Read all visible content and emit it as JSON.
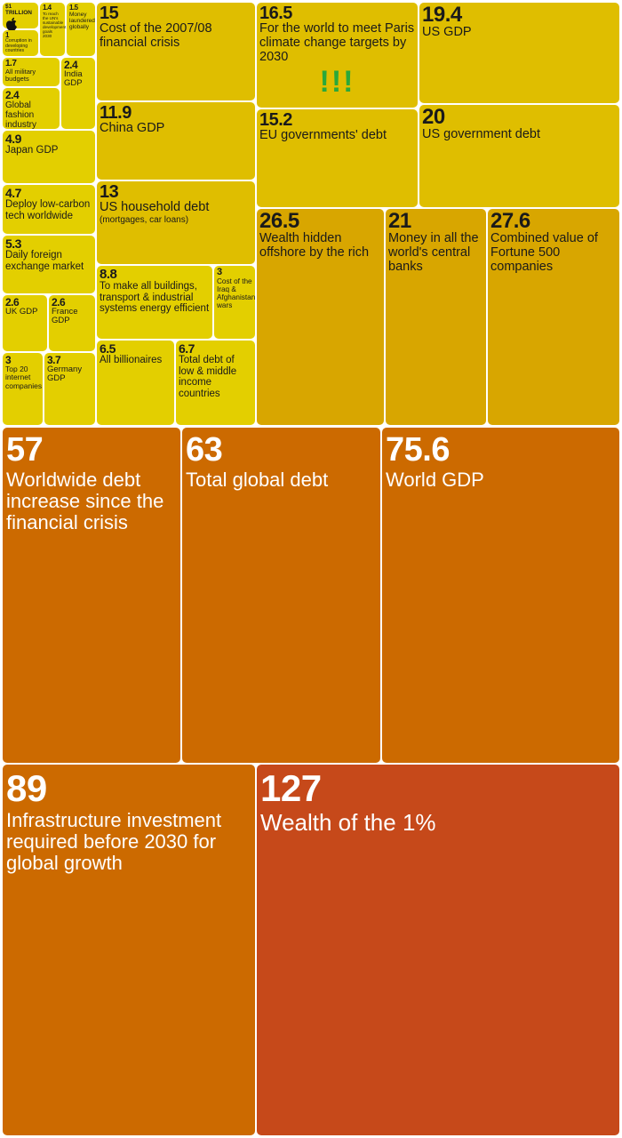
{
  "chart_data": {
    "type": "treemap",
    "unit": "TRILLION",
    "legend_key": {
      "value": "$1 TRILLION",
      "icon": "apple-logo-icon"
    },
    "colors": {
      "small": "#e3cf00",
      "medium": "#dfbe00",
      "large": "#d8a600",
      "huge": "#cc6a00",
      "top": "#c6491a",
      "dark_text": "#1a1a1a",
      "light_text": "#ffffff",
      "emphasis": "#2aa83a"
    },
    "items": [
      {
        "value": "1",
        "label": "Corruption in developing countries"
      },
      {
        "value": "1.4",
        "label": "To reach the UN's sustainable development goals 2030"
      },
      {
        "value": "1.5",
        "label": "Money laundered globally"
      },
      {
        "value": "1.7",
        "label": "All military budgets"
      },
      {
        "value": "2.4",
        "label": "India GDP"
      },
      {
        "value": "2.4",
        "label": "Global fashion industry"
      },
      {
        "value": "4.9",
        "label": "Japan GDP"
      },
      {
        "value": "4.7",
        "label": "Deploy low-carbon tech worldwide"
      },
      {
        "value": "5.3",
        "label": "Daily foreign exchange market"
      },
      {
        "value": "2.6",
        "label": "UK GDP"
      },
      {
        "value": "2.6",
        "label": "France GDP"
      },
      {
        "value": "3",
        "label": "Top 20 internet companies"
      },
      {
        "value": "3.7",
        "label": "Germany GDP"
      },
      {
        "value": "15",
        "label": "Cost of the 2007/08 financial crisis"
      },
      {
        "value": "11.9",
        "label": "China GDP"
      },
      {
        "value": "13",
        "label": "US household debt",
        "note": "(mortgages, car loans)"
      },
      {
        "value": "8.8",
        "label": "To make all buildings, transport & industrial systems energy efficient"
      },
      {
        "value": "3",
        "label": "Cost of the Iraq & Afghanistan wars"
      },
      {
        "value": "6.5",
        "label": "All billionaires"
      },
      {
        "value": "6.7",
        "label": "Total debt of low & middle income countries"
      },
      {
        "value": "16.5",
        "label": "For the world to meet Paris climate change targets by 2030",
        "emphasis": "!!!"
      },
      {
        "value": "19.4",
        "label": "US GDP"
      },
      {
        "value": "15.2",
        "label": "EU governments' debt"
      },
      {
        "value": "20",
        "label": "US government debt"
      },
      {
        "value": "26.5",
        "label": "Wealth hidden offshore by the rich"
      },
      {
        "value": "21",
        "label": "Money in all the world's central banks"
      },
      {
        "value": "27.6",
        "label": "Combined value of Fortune 500 companies"
      },
      {
        "value": "57",
        "label": "Worldwide debt increase since the financial crisis"
      },
      {
        "value": "63",
        "label": "Total global debt"
      },
      {
        "value": "75.6",
        "label": "World GDP"
      },
      {
        "value": "89",
        "label": "Infrastructure investment required before 2030 for global growth"
      },
      {
        "value": "127",
        "label": "Wealth of the 1%"
      }
    ]
  }
}
